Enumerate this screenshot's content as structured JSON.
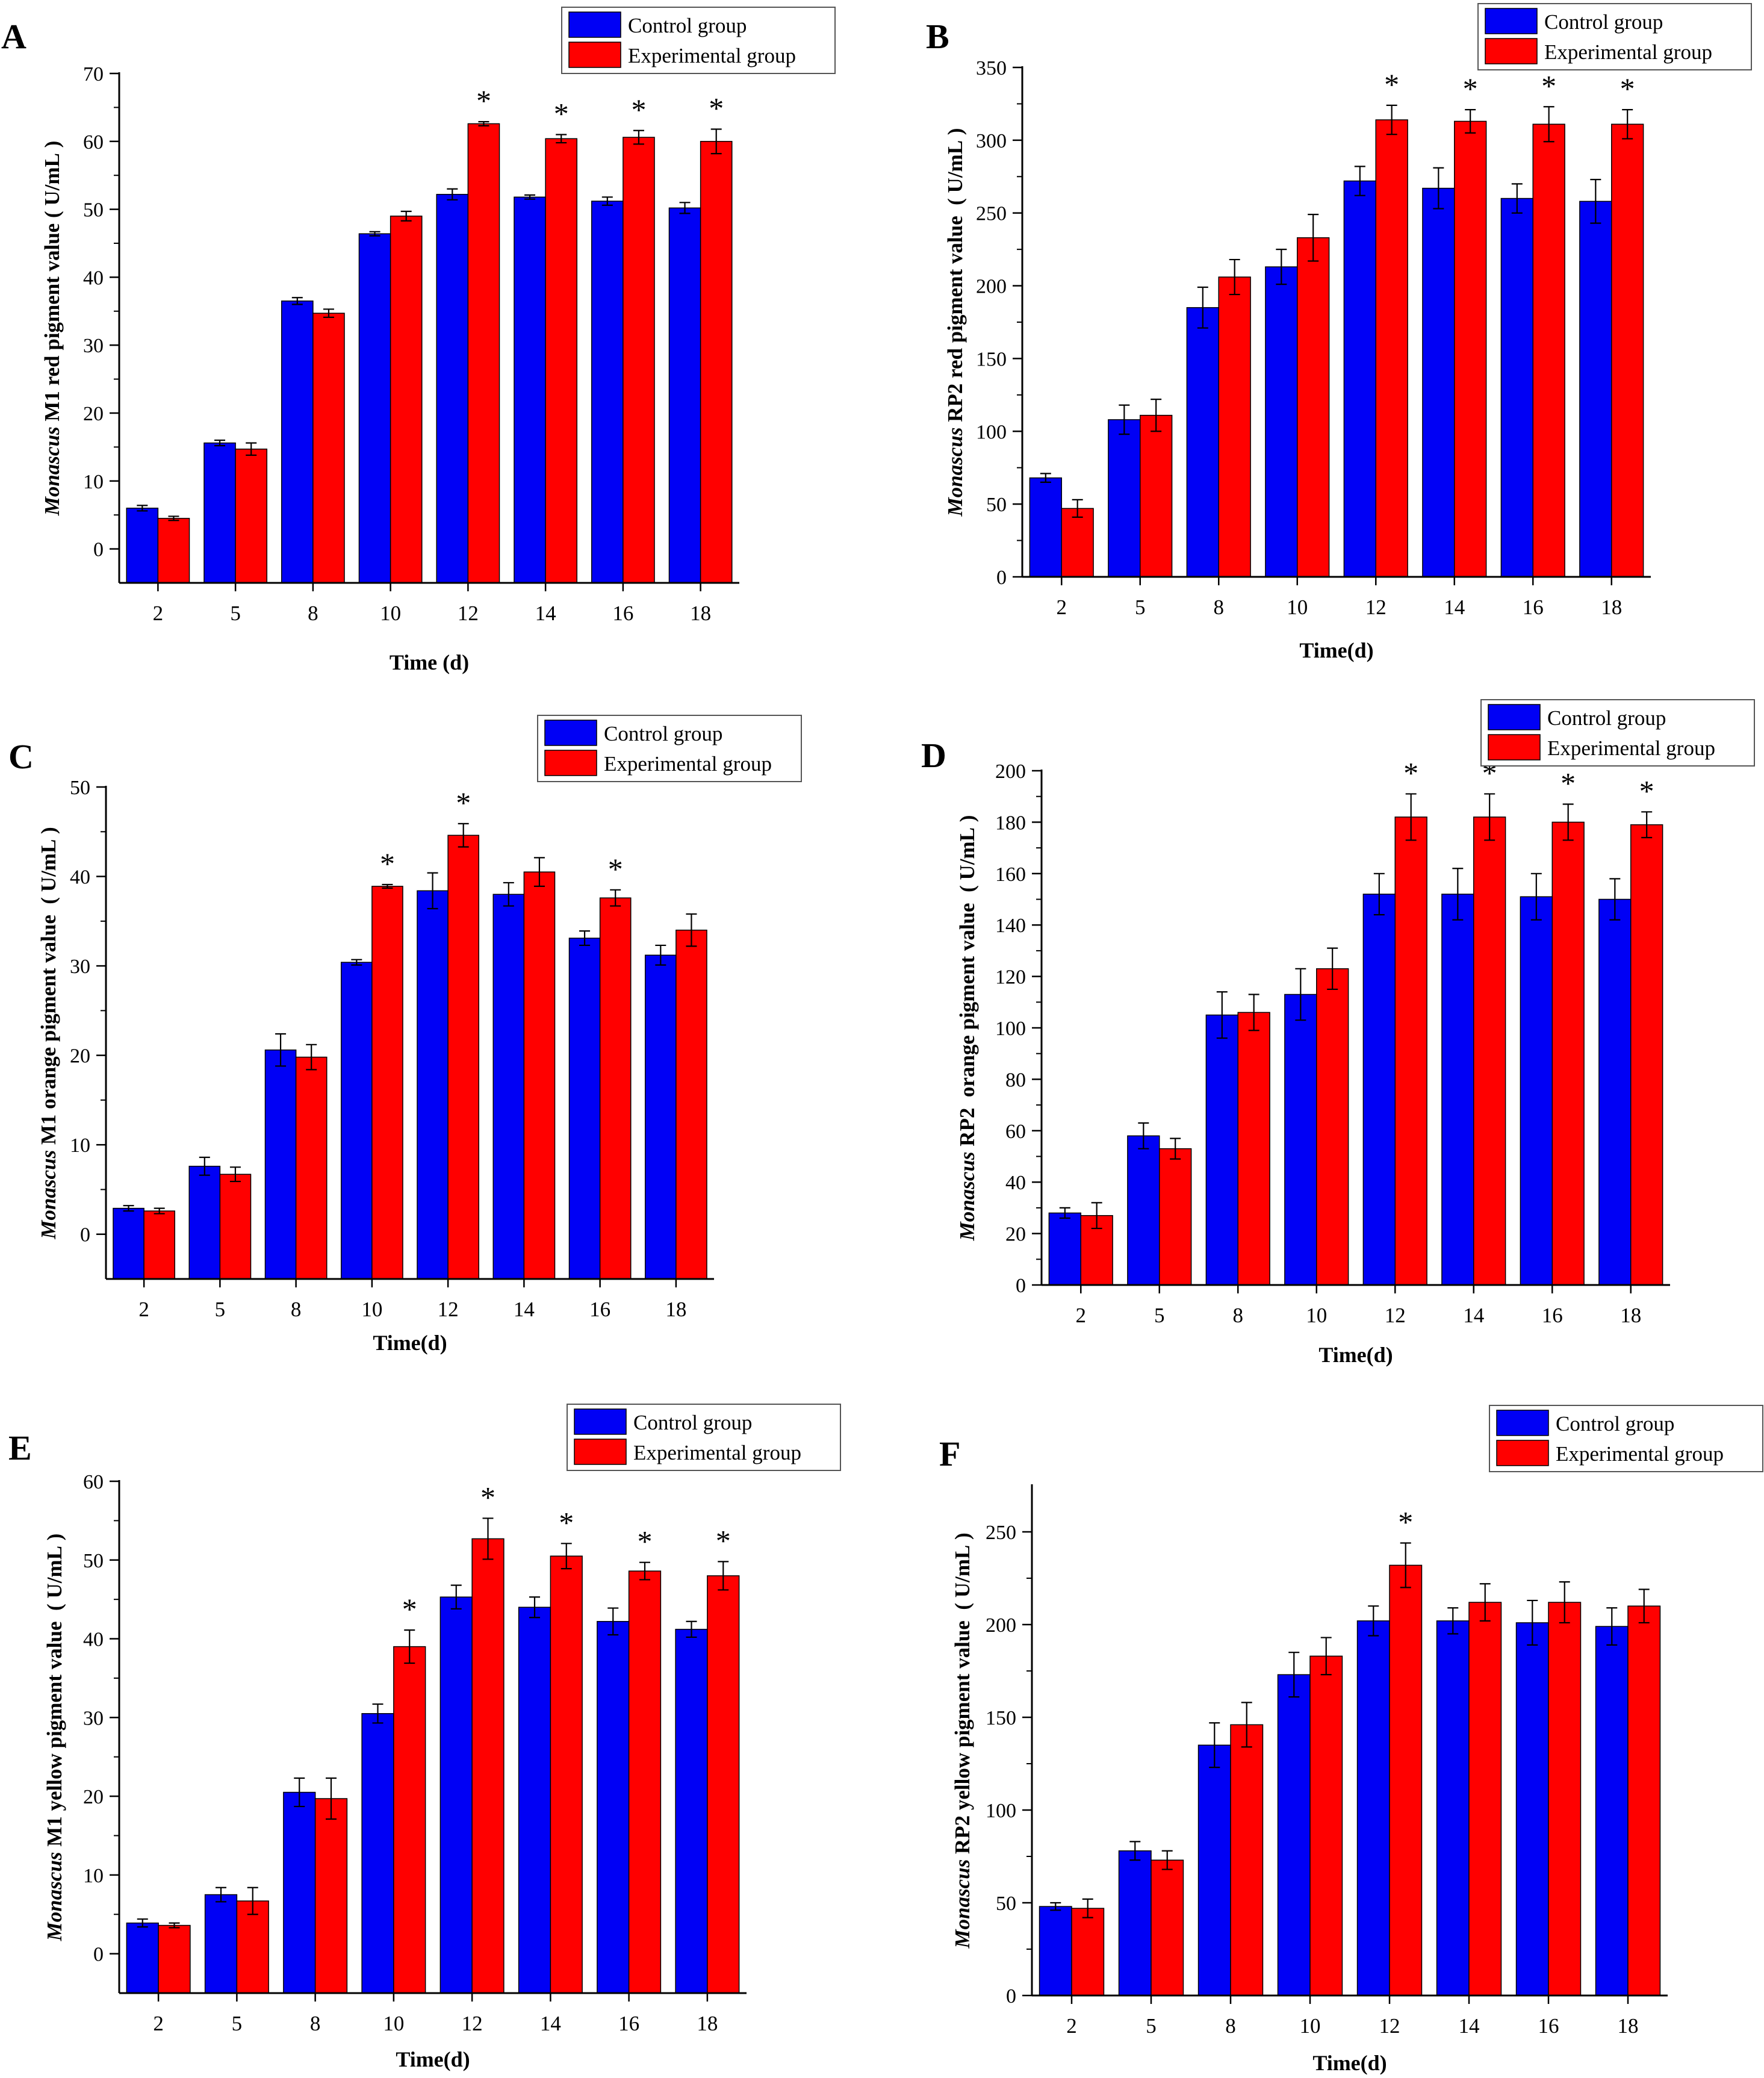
{
  "palette": {
    "control": "#0000f5",
    "experimental": "#ff0000",
    "axis": "#000000"
  },
  "chart_data": [
    {
      "panel": "A",
      "type": "bar",
      "ylabel_italic": "Monascus",
      "ylabel_rest": " M1 red pigment value ( U/mL )",
      "xlabel": "Time (d)",
      "categories": [
        "2",
        "5",
        "8",
        "10",
        "12",
        "14",
        "16",
        "18"
      ],
      "ylim": [
        -5,
        70
      ],
      "yticks": [
        0,
        10,
        20,
        30,
        40,
        50,
        60,
        70
      ],
      "series": [
        {
          "name": "Control group",
          "values": [
            6.0,
            15.6,
            36.5,
            46.4,
            52.2,
            51.8,
            51.2,
            50.2
          ],
          "errors": [
            0.4,
            0.4,
            0.5,
            0.3,
            0.8,
            0.3,
            0.6,
            0.8
          ]
        },
        {
          "name": "Experimental group",
          "values": [
            4.5,
            14.7,
            34.7,
            49.0,
            62.6,
            60.4,
            60.6,
            60.0
          ],
          "errors": [
            0.3,
            0.9,
            0.6,
            0.7,
            0.3,
            0.6,
            1.0,
            1.8
          ]
        }
      ],
      "significance": [
        "",
        "",
        "",
        "",
        "*",
        "*",
        "*",
        "*"
      ]
    },
    {
      "panel": "B",
      "type": "bar",
      "ylabel_italic": "Monascus",
      "ylabel_rest": " RP2 red pigment value  ( U/mL )",
      "xlabel": "Time(d)",
      "categories": [
        "2",
        "5",
        "8",
        "10",
        "12",
        "14",
        "16",
        "18"
      ],
      "ylim": [
        0,
        350
      ],
      "yticks": [
        0,
        50,
        100,
        150,
        200,
        250,
        300,
        350
      ],
      "series": [
        {
          "name": "Control group",
          "values": [
            68,
            108,
            185,
            213,
            272,
            267,
            260,
            258
          ],
          "errors": [
            3,
            10,
            14,
            12,
            10,
            14,
            10,
            15
          ]
        },
        {
          "name": "Experimental group",
          "values": [
            47,
            111,
            206,
            233,
            314,
            313,
            311,
            311
          ],
          "errors": [
            6,
            11,
            12,
            16,
            10,
            8,
            12,
            10
          ]
        }
      ],
      "significance": [
        "",
        "",
        "",
        "",
        "*",
        "*",
        "*",
        "*"
      ]
    },
    {
      "panel": "C",
      "type": "bar",
      "ylabel_italic": "Monascus",
      "ylabel_rest": " M1 orange pigment value  ( U/mL )",
      "xlabel": "Time(d)",
      "categories": [
        "2",
        "5",
        "8",
        "10",
        "12",
        "14",
        "16",
        "18"
      ],
      "ylim": [
        -5,
        50
      ],
      "yticks": [
        0,
        10,
        20,
        30,
        40,
        50
      ],
      "series": [
        {
          "name": "Control group",
          "values": [
            2.9,
            7.6,
            20.6,
            30.4,
            38.4,
            38.0,
            33.1,
            31.2
          ],
          "errors": [
            0.3,
            1.0,
            1.8,
            0.3,
            2.0,
            1.3,
            0.8,
            1.1
          ]
        },
        {
          "name": "Experimental group",
          "values": [
            2.6,
            6.7,
            19.8,
            38.9,
            44.6,
            40.5,
            37.6,
            34.0
          ],
          "errors": [
            0.3,
            0.8,
            1.4,
            0.2,
            1.3,
            1.6,
            0.9,
            1.8
          ]
        }
      ],
      "significance": [
        "",
        "",
        "",
        "*",
        "*",
        "",
        "*",
        ""
      ]
    },
    {
      "panel": "D",
      "type": "bar",
      "ylabel_italic": "Monascus",
      "ylabel_rest": " RP2  orange pigment value  ( U/mL )",
      "xlabel": "Time(d)",
      "categories": [
        "2",
        "5",
        "8",
        "10",
        "12",
        "14",
        "16",
        "18"
      ],
      "ylim": [
        0,
        200
      ],
      "yticks": [
        0,
        20,
        40,
        60,
        80,
        100,
        120,
        140,
        160,
        180,
        200
      ],
      "series": [
        {
          "name": "Control group",
          "values": [
            28,
            58,
            105,
            113,
            152,
            152,
            151,
            150
          ],
          "errors": [
            2,
            5,
            9,
            10,
            8,
            10,
            9,
            8
          ]
        },
        {
          "name": "Experimental group",
          "values": [
            27,
            53,
            106,
            123,
            182,
            182,
            180,
            179
          ],
          "errors": [
            5,
            4,
            7,
            8,
            9,
            9,
            7,
            5
          ]
        }
      ],
      "significance": [
        "",
        "",
        "",
        "",
        "*",
        "*",
        "*",
        "*"
      ]
    },
    {
      "panel": "E",
      "type": "bar",
      "ylabel_italic": "Monascus",
      "ylabel_rest": " M1 yellow pigment value  ( U/mL )",
      "xlabel": "Time(d)",
      "categories": [
        "2",
        "5",
        "8",
        "10",
        "12",
        "14",
        "16",
        "18"
      ],
      "ylim": [
        -5,
        60
      ],
      "yticks": [
        0,
        10,
        20,
        30,
        40,
        50,
        60
      ],
      "series": [
        {
          "name": "Control group",
          "values": [
            3.9,
            7.5,
            20.5,
            30.5,
            45.3,
            44.0,
            42.2,
            41.2
          ],
          "errors": [
            0.5,
            0.9,
            1.8,
            1.2,
            1.5,
            1.3,
            1.7,
            1.0
          ]
        },
        {
          "name": "Experimental group",
          "values": [
            3.6,
            6.7,
            19.7,
            39.0,
            52.7,
            50.5,
            48.6,
            48.0
          ],
          "errors": [
            0.3,
            1.7,
            2.6,
            2.1,
            2.6,
            1.6,
            1.1,
            1.8
          ]
        }
      ],
      "significance": [
        "",
        "",
        "",
        "*",
        "*",
        "*",
        "*",
        "*"
      ]
    },
    {
      "panel": "F",
      "type": "bar",
      "ylabel_italic": "Monascus",
      "ylabel_rest": " RP2 yellow pigment value  ( U/mL )",
      "xlabel": "Time(d)",
      "categories": [
        "2",
        "5",
        "8",
        "10",
        "12",
        "14",
        "16",
        "18"
      ],
      "ylim": [
        0,
        275
      ],
      "yticks": [
        0,
        50,
        100,
        150,
        200,
        250
      ],
      "series": [
        {
          "name": "Control group",
          "values": [
            48,
            78,
            135,
            173,
            202,
            202,
            201,
            199
          ],
          "errors": [
            2,
            5,
            12,
            12,
            8,
            7,
            12,
            10
          ]
        },
        {
          "name": "Experimental group",
          "values": [
            47,
            73,
            146,
            183,
            232,
            212,
            212,
            210
          ],
          "errors": [
            5,
            5,
            12,
            10,
            12,
            10,
            11,
            9
          ]
        }
      ],
      "significance": [
        "",
        "",
        "",
        "",
        "*",
        "",
        "",
        ""
      ]
    }
  ]
}
